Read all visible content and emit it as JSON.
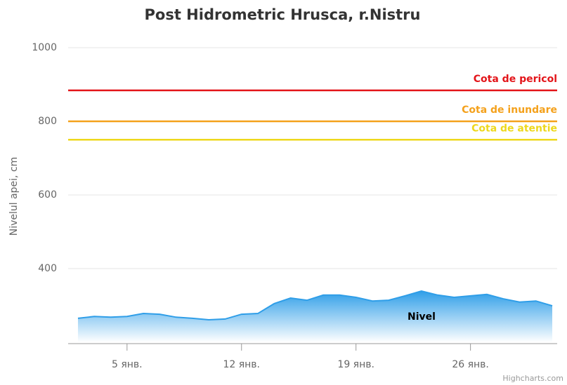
{
  "chart_data": {
    "type": "area",
    "title": "Post Hidrometric Hrusca, r.Nistru",
    "y_axis_label": "Nivelul apei, cm",
    "credits": "Highcharts.com",
    "x": [
      2,
      3,
      4,
      5,
      6,
      7,
      8,
      9,
      10,
      11,
      12,
      13,
      14,
      15,
      16,
      17,
      18,
      19,
      20,
      21,
      22,
      23,
      24,
      25,
      26,
      27,
      28,
      29,
      30,
      31
    ],
    "series": [
      {
        "name": "Nivel",
        "color": "#2f9ee8",
        "values": [
          265,
          270,
          268,
          270,
          278,
          276,
          268,
          265,
          261,
          263,
          276,
          278,
          305,
          320,
          314,
          328,
          328,
          322,
          312,
          314,
          326,
          339,
          328,
          322,
          326,
          330,
          318,
          309,
          312,
          299
        ]
      }
    ],
    "xlim": [
      1.4,
      31.3
    ],
    "xticks": [
      {
        "value": 5,
        "label": "5 янв."
      },
      {
        "value": 12,
        "label": "12 янв."
      },
      {
        "value": 19,
        "label": "19 янв."
      },
      {
        "value": 26,
        "label": "26 янв."
      }
    ],
    "ylim": [
      200,
      1000
    ],
    "yticks": [
      400,
      600,
      800,
      1000
    ],
    "grid": true,
    "plot_lines": [
      {
        "label": "Cota de pericol",
        "value": 884,
        "color": "#e3151a"
      },
      {
        "label": "Cota de inundare",
        "value": 800,
        "color": "#f4a11c"
      },
      {
        "label": "Cota de atentie",
        "value": 750,
        "color": "#eed81c"
      }
    ]
  }
}
